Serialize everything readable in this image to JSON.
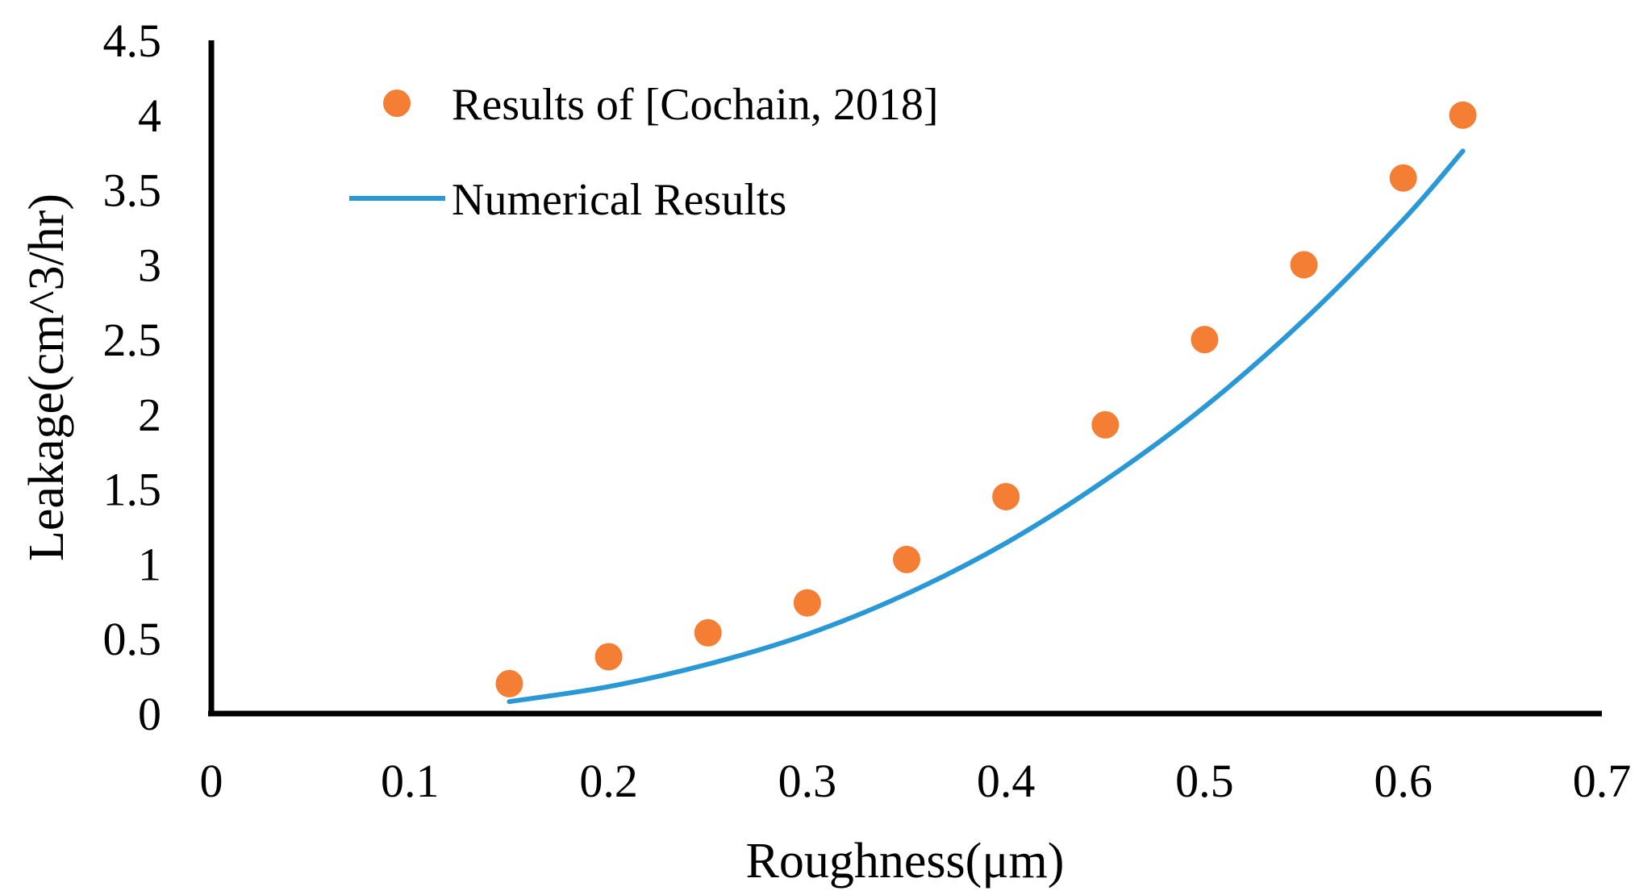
{
  "chart_data": {
    "type": "scatter",
    "title": "",
    "xlabel": "Roughness(μm)",
    "ylabel": "Leakage(cm^3/hr)",
    "xlim": [
      0,
      0.7
    ],
    "ylim": [
      0,
      4.5
    ],
    "xticks": [
      0,
      0.1,
      0.2,
      0.3,
      0.4,
      0.5,
      0.6,
      0.7
    ],
    "xtick_labels": [
      "0",
      "0.1",
      "0.2",
      "0.3",
      "0.4",
      "0.5",
      "0.6",
      "0.7"
    ],
    "yticks": [
      0,
      0.5,
      1,
      1.5,
      2,
      2.5,
      3,
      3.5,
      4,
      4.5
    ],
    "ytick_labels": [
      "0",
      "0.5",
      "1",
      "1.5",
      "2",
      "2.5",
      "3",
      "3.5",
      "4",
      "4.5"
    ],
    "grid": false,
    "legend_position": "top-left",
    "series": [
      {
        "name": "Results of [Cochain, 2018]",
        "kind": "markers",
        "color": "#F47F34",
        "x": [
          0.15,
          0.2,
          0.25,
          0.3,
          0.35,
          0.4,
          0.45,
          0.5,
          0.55,
          0.6,
          0.63
        ],
        "y": [
          0.2,
          0.38,
          0.54,
          0.74,
          1.03,
          1.45,
          1.93,
          2.5,
          3.0,
          3.58,
          4.0
        ]
      },
      {
        "name": "Numerical Results",
        "kind": "line",
        "color": "#2A98D5",
        "x": [
          0.15,
          0.2,
          0.25,
          0.3,
          0.35,
          0.4,
          0.45,
          0.5,
          0.55,
          0.6,
          0.63
        ],
        "y": [
          0.08,
          0.18,
          0.33,
          0.53,
          0.8,
          1.14,
          1.56,
          2.05,
          2.63,
          3.3,
          3.76
        ]
      }
    ]
  }
}
